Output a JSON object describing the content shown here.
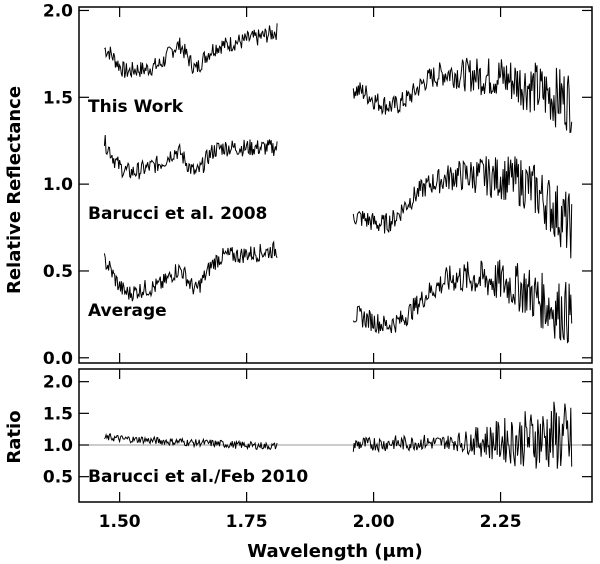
{
  "chart_data": [
    {
      "type": "line",
      "ylabel": "Relative Reflectance",
      "xlabel": "",
      "xlim": [
        1.42,
        2.43
      ],
      "ylim": [
        -0.03,
        2.02
      ],
      "xticks": [
        "1.50",
        "1.75",
        "2.00",
        "2.25"
      ],
      "xtick_values": [
        1.5,
        1.75,
        2.0,
        2.25
      ],
      "yticks": [
        "0.0",
        "0.5",
        "1.0",
        "1.5",
        "2.0"
      ],
      "ytick_values": [
        0.0,
        0.5,
        1.0,
        1.5,
        2.0
      ],
      "annotations": [
        "This Work",
        "Barucci et al. 2008",
        "Average"
      ],
      "series": [
        {
          "label": "This Work",
          "x": [
            1.47,
            1.48,
            1.49,
            1.5,
            1.51,
            1.52,
            1.53,
            1.54,
            1.55,
            1.56,
            1.57,
            1.58,
            1.59,
            1.6,
            1.61,
            1.62,
            1.63,
            1.64,
            1.65,
            1.66,
            1.67,
            1.68,
            1.69,
            1.7,
            1.71,
            1.72,
            1.73,
            1.74,
            1.75,
            1.76,
            1.77,
            1.78,
            1.79,
            1.8,
            1.81,
            null,
            1.96,
            1.97,
            1.98,
            1.99,
            2.0,
            2.01,
            2.02,
            2.03,
            2.04,
            2.05,
            2.06,
            2.07,
            2.08,
            2.09,
            2.1,
            2.11,
            2.12,
            2.13,
            2.14,
            2.15,
            2.16,
            2.17,
            2.18,
            2.19,
            2.2,
            2.21,
            2.22,
            2.23,
            2.24,
            2.25,
            2.26,
            2.27,
            2.28,
            2.29,
            2.3,
            2.31,
            2.32,
            2.33,
            2.34,
            2.35,
            2.36,
            2.37,
            2.38,
            2.39
          ],
          "y": [
            1.78,
            1.76,
            1.72,
            1.68,
            1.65,
            1.65,
            1.66,
            1.66,
            1.66,
            1.67,
            1.68,
            1.69,
            1.72,
            1.76,
            1.79,
            1.8,
            1.75,
            1.7,
            1.66,
            1.7,
            1.74,
            1.77,
            1.79,
            1.8,
            1.8,
            1.81,
            1.82,
            1.82,
            1.83,
            1.84,
            1.84,
            1.85,
            1.86,
            1.87,
            1.88,
            null,
            1.55,
            1.54,
            1.53,
            1.51,
            1.49,
            1.47,
            1.46,
            1.45,
            1.45,
            1.46,
            1.48,
            1.5,
            1.53,
            1.56,
            1.59,
            1.61,
            1.62,
            1.63,
            1.64,
            1.64,
            1.64,
            1.63,
            1.63,
            1.63,
            1.63,
            1.62,
            1.62,
            1.62,
            1.62,
            1.62,
            1.61,
            1.6,
            1.59,
            1.58,
            1.57,
            1.56,
            1.55,
            1.53,
            1.52,
            1.51,
            1.5,
            1.5,
            1.49,
            1.48
          ]
        },
        {
          "label": "Barucci et al. 2008",
          "x": [
            1.47,
            1.48,
            1.49,
            1.5,
            1.51,
            1.52,
            1.53,
            1.54,
            1.55,
            1.56,
            1.57,
            1.58,
            1.59,
            1.6,
            1.61,
            1.62,
            1.63,
            1.64,
            1.65,
            1.66,
            1.67,
            1.68,
            1.69,
            1.7,
            1.71,
            1.72,
            1.73,
            1.74,
            1.75,
            1.76,
            1.77,
            1.78,
            1.79,
            1.8,
            1.81,
            null,
            1.96,
            1.97,
            1.98,
            1.99,
            2.0,
            2.01,
            2.02,
            2.03,
            2.04,
            2.05,
            2.06,
            2.07,
            2.08,
            2.09,
            2.1,
            2.11,
            2.12,
            2.13,
            2.14,
            2.15,
            2.16,
            2.17,
            2.18,
            2.19,
            2.2,
            2.21,
            2.22,
            2.23,
            2.24,
            2.25,
            2.26,
            2.27,
            2.28,
            2.29,
            2.3,
            2.31,
            2.32,
            2.33,
            2.34,
            2.35,
            2.36,
            2.37,
            2.38,
            2.39
          ],
          "y": [
            1.24,
            1.2,
            1.14,
            1.1,
            1.08,
            1.07,
            1.07,
            1.08,
            1.09,
            1.1,
            1.11,
            1.12,
            1.14,
            1.17,
            1.19,
            1.18,
            1.13,
            1.09,
            1.06,
            1.09,
            1.14,
            1.18,
            1.2,
            1.21,
            1.21,
            1.21,
            1.21,
            1.21,
            1.21,
            1.21,
            1.21,
            1.21,
            1.21,
            1.21,
            1.21,
            null,
            0.82,
            0.81,
            0.8,
            0.79,
            0.78,
            0.77,
            0.77,
            0.78,
            0.8,
            0.83,
            0.87,
            0.9,
            0.93,
            0.96,
            0.98,
            1.0,
            1.01,
            1.02,
            1.03,
            1.04,
            1.05,
            1.05,
            1.05,
            1.05,
            1.05,
            1.05,
            1.05,
            1.04,
            1.04,
            1.04,
            1.03,
            1.03,
            1.02,
            1.01,
            1.0,
            0.98,
            0.96,
            0.93,
            0.9,
            0.87,
            0.84,
            0.81,
            0.78,
            0.75
          ]
        },
        {
          "label": "Average",
          "x": [
            1.47,
            1.48,
            1.49,
            1.5,
            1.51,
            1.52,
            1.53,
            1.54,
            1.55,
            1.56,
            1.57,
            1.58,
            1.59,
            1.6,
            1.61,
            1.62,
            1.63,
            1.64,
            1.65,
            1.66,
            1.67,
            1.68,
            1.69,
            1.7,
            1.71,
            1.72,
            1.73,
            1.74,
            1.75,
            1.76,
            1.77,
            1.78,
            1.79,
            1.8,
            1.81,
            null,
            1.96,
            1.97,
            1.98,
            1.99,
            2.0,
            2.01,
            2.02,
            2.03,
            2.04,
            2.05,
            2.06,
            2.07,
            2.08,
            2.09,
            2.1,
            2.11,
            2.12,
            2.13,
            2.14,
            2.15,
            2.16,
            2.17,
            2.18,
            2.19,
            2.2,
            2.21,
            2.22,
            2.23,
            2.24,
            2.25,
            2.26,
            2.27,
            2.28,
            2.29,
            2.3,
            2.31,
            2.32,
            2.33,
            2.34,
            2.35,
            2.36,
            2.37,
            2.38,
            2.39
          ],
          "y": [
            0.56,
            0.52,
            0.46,
            0.41,
            0.38,
            0.37,
            0.38,
            0.39,
            0.4,
            0.4,
            0.41,
            0.42,
            0.44,
            0.47,
            0.5,
            0.51,
            0.47,
            0.42,
            0.39,
            0.43,
            0.48,
            0.53,
            0.56,
            0.58,
            0.59,
            0.59,
            0.59,
            0.59,
            0.6,
            0.6,
            0.6,
            0.61,
            0.61,
            0.62,
            0.62,
            null,
            0.25,
            0.24,
            0.23,
            0.22,
            0.21,
            0.2,
            0.19,
            0.19,
            0.2,
            0.21,
            0.23,
            0.26,
            0.29,
            0.32,
            0.35,
            0.38,
            0.4,
            0.42,
            0.44,
            0.45,
            0.46,
            0.46,
            0.46,
            0.46,
            0.46,
            0.45,
            0.45,
            0.45,
            0.44,
            0.44,
            0.43,
            0.42,
            0.41,
            0.4,
            0.39,
            0.37,
            0.35,
            0.33,
            0.31,
            0.29,
            0.28,
            0.27,
            0.26,
            0.25
          ]
        }
      ]
    },
    {
      "type": "line",
      "ylabel": "Ratio",
      "xlabel": "Wavelength (μm)",
      "xlim": [
        1.42,
        2.43
      ],
      "ylim": [
        0.1,
        2.2
      ],
      "xticks": [
        "1.50",
        "1.75",
        "2.00",
        "2.25"
      ],
      "xtick_values": [
        1.5,
        1.75,
        2.0,
        2.25
      ],
      "yticks": [
        "0.5",
        "1.0",
        "1.5",
        "2.0"
      ],
      "ytick_values": [
        0.5,
        1.0,
        1.5,
        2.0
      ],
      "reference_line": 1.0,
      "annotations": [
        "Barucci et al./Feb 2010"
      ],
      "series": [
        {
          "label": "Barucci et al./Feb 2010",
          "x": [
            1.47,
            1.48,
            1.49,
            1.5,
            1.51,
            1.52,
            1.53,
            1.54,
            1.55,
            1.56,
            1.57,
            1.58,
            1.59,
            1.6,
            1.61,
            1.62,
            1.63,
            1.64,
            1.65,
            1.66,
            1.67,
            1.68,
            1.69,
            1.7,
            1.71,
            1.72,
            1.73,
            1.74,
            1.75,
            1.76,
            1.77,
            1.78,
            1.79,
            1.8,
            1.81,
            null,
            1.96,
            1.97,
            1.98,
            1.99,
            2.0,
            2.01,
            2.02,
            2.03,
            2.04,
            2.05,
            2.06,
            2.07,
            2.08,
            2.09,
            2.1,
            2.11,
            2.12,
            2.13,
            2.14,
            2.15,
            2.16,
            2.17,
            2.18,
            2.19,
            2.2,
            2.21,
            2.22,
            2.23,
            2.24,
            2.25,
            2.26,
            2.27,
            2.28,
            2.29,
            2.3,
            2.31,
            2.32,
            2.33,
            2.34,
            2.35,
            2.36,
            2.37,
            2.38,
            2.39
          ],
          "y": [
            1.1,
            1.12,
            1.11,
            1.1,
            1.09,
            1.1,
            1.08,
            1.09,
            1.08,
            1.07,
            1.07,
            1.06,
            1.06,
            1.05,
            1.05,
            1.06,
            1.04,
            1.04,
            1.03,
            1.04,
            1.03,
            1.03,
            1.02,
            1.02,
            1.01,
            1.01,
            1.0,
            1.0,
            1.0,
            0.99,
            0.99,
            0.99,
            0.98,
            0.98,
            0.98,
            null,
            1.0,
            1.01,
            1.02,
            1.0,
            1.03,
            1.02,
            1.01,
            1.03,
            1.04,
            1.02,
            1.03,
            1.02,
            1.04,
            1.03,
            1.05,
            1.03,
            1.04,
            1.03,
            1.05,
            1.04,
            1.06,
            1.05,
            1.04,
            1.06,
            1.05,
            1.07,
            1.06,
            1.05,
            1.07,
            1.06,
            1.08,
            1.07,
            1.06,
            1.08,
            1.1,
            1.09,
            1.12,
            1.1,
            1.14,
            1.12,
            1.15,
            1.1,
            1.05,
            1.0
          ]
        }
      ]
    }
  ]
}
